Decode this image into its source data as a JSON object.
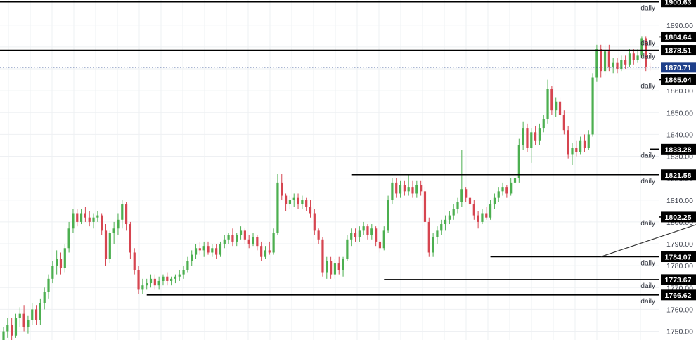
{
  "chart_data": {
    "type": "candlestick",
    "title": "",
    "xlabel": "",
    "ylabel": "",
    "ylim": [
      1746,
      1901.5
    ],
    "grid": true,
    "y_ticks": [
      1750,
      1760,
      1770,
      1780,
      1790,
      1800,
      1810,
      1820,
      1830,
      1840,
      1850,
      1860,
      1870,
      1880,
      1890
    ],
    "level_tag": "daily",
    "levels": [
      {
        "value": 1900.63,
        "label": "1900.63",
        "from": 0
      },
      {
        "value": 1884.64,
        "label": "1884.64",
        "from": 220
      },
      {
        "value": 1878.51,
        "label": "1878.51",
        "from": 0
      },
      {
        "value": 1865.04,
        "label": "1865.04",
        "from": 162
      },
      {
        "value": 1833.28,
        "label": "1833.28",
        "from": 158
      },
      {
        "value": 1821.58,
        "label": "1821.58",
        "from": 85
      },
      {
        "value": 1802.25,
        "label": "1802.25",
        "from": 166
      },
      {
        "value": 1784.07,
        "label": "1784.07",
        "from": 119
      },
      {
        "value": 1773.67,
        "label": "1773.67",
        "from": 93
      },
      {
        "value": 1766.62,
        "label": "1766.62",
        "from": 35
      }
    ],
    "current_price": {
      "value": 1870.71,
      "label": "1870.71"
    },
    "trendline": {
      "from": [
        146,
        1784.1
      ],
      "to": [
        250,
        1849.5
      ]
    },
    "candles": [
      {
        "o": 1746,
        "h": 1752,
        "l": 1745,
        "c": 1750
      },
      {
        "o": 1750,
        "h": 1756,
        "l": 1747,
        "c": 1753
      },
      {
        "o": 1753,
        "h": 1756,
        "l": 1746,
        "c": 1748
      },
      {
        "o": 1748,
        "h": 1758,
        "l": 1747,
        "c": 1756
      },
      {
        "o": 1756,
        "h": 1761,
        "l": 1752,
        "c": 1758
      },
      {
        "o": 1758,
        "h": 1762,
        "l": 1750,
        "c": 1752
      },
      {
        "o": 1752,
        "h": 1757,
        "l": 1749,
        "c": 1755
      },
      {
        "o": 1755,
        "h": 1763,
        "l": 1753,
        "c": 1760
      },
      {
        "o": 1760,
        "h": 1762,
        "l": 1753,
        "c": 1755
      },
      {
        "o": 1755,
        "h": 1765,
        "l": 1753,
        "c": 1763
      },
      {
        "o": 1763,
        "h": 1770,
        "l": 1760,
        "c": 1768
      },
      {
        "o": 1768,
        "h": 1776,
        "l": 1765,
        "c": 1774
      },
      {
        "o": 1774,
        "h": 1782,
        "l": 1772,
        "c": 1780
      },
      {
        "o": 1780,
        "h": 1787,
        "l": 1776,
        "c": 1783
      },
      {
        "o": 1783,
        "h": 1786,
        "l": 1776,
        "c": 1779
      },
      {
        "o": 1779,
        "h": 1790,
        "l": 1777,
        "c": 1788
      },
      {
        "o": 1788,
        "h": 1800,
        "l": 1786,
        "c": 1797
      },
      {
        "o": 1797,
        "h": 1806,
        "l": 1795,
        "c": 1804
      },
      {
        "o": 1804,
        "h": 1806,
        "l": 1798,
        "c": 1800
      },
      {
        "o": 1800,
        "h": 1806,
        "l": 1799,
        "c": 1804
      },
      {
        "o": 1804,
        "h": 1807,
        "l": 1800,
        "c": 1802
      },
      {
        "o": 1802,
        "h": 1805,
        "l": 1798,
        "c": 1800
      },
      {
        "o": 1800,
        "h": 1804,
        "l": 1797,
        "c": 1802
      },
      {
        "o": 1802,
        "h": 1805,
        "l": 1800,
        "c": 1803
      },
      {
        "o": 1803,
        "h": 1804,
        "l": 1794,
        "c": 1796
      },
      {
        "o": 1796,
        "h": 1799,
        "l": 1780,
        "c": 1783
      },
      {
        "o": 1783,
        "h": 1796,
        "l": 1781,
        "c": 1795
      },
      {
        "o": 1795,
        "h": 1800,
        "l": 1790,
        "c": 1797
      },
      {
        "o": 1797,
        "h": 1804,
        "l": 1794,
        "c": 1801
      },
      {
        "o": 1801,
        "h": 1810,
        "l": 1797,
        "c": 1808
      },
      {
        "o": 1808,
        "h": 1809,
        "l": 1796,
        "c": 1799
      },
      {
        "o": 1799,
        "h": 1800,
        "l": 1783,
        "c": 1786
      },
      {
        "o": 1786,
        "h": 1788,
        "l": 1776,
        "c": 1778
      },
      {
        "o": 1778,
        "h": 1780,
        "l": 1767,
        "c": 1769
      },
      {
        "o": 1769,
        "h": 1774,
        "l": 1767,
        "c": 1771
      },
      {
        "o": 1771,
        "h": 1774,
        "l": 1769,
        "c": 1772
      },
      {
        "o": 1772,
        "h": 1776,
        "l": 1770,
        "c": 1774
      },
      {
        "o": 1774,
        "h": 1776,
        "l": 1769,
        "c": 1771
      },
      {
        "o": 1771,
        "h": 1775,
        "l": 1769,
        "c": 1773
      },
      {
        "o": 1773,
        "h": 1776,
        "l": 1771,
        "c": 1775
      },
      {
        "o": 1775,
        "h": 1777,
        "l": 1771,
        "c": 1773
      },
      {
        "o": 1773,
        "h": 1775,
        "l": 1771,
        "c": 1774
      },
      {
        "o": 1774,
        "h": 1776,
        "l": 1772,
        "c": 1775
      },
      {
        "o": 1775,
        "h": 1778,
        "l": 1773,
        "c": 1776
      },
      {
        "o": 1776,
        "h": 1780,
        "l": 1774,
        "c": 1778
      },
      {
        "o": 1778,
        "h": 1784,
        "l": 1777,
        "c": 1782
      },
      {
        "o": 1782,
        "h": 1787,
        "l": 1780,
        "c": 1785
      },
      {
        "o": 1785,
        "h": 1790,
        "l": 1783,
        "c": 1788
      },
      {
        "o": 1788,
        "h": 1791,
        "l": 1785,
        "c": 1787
      },
      {
        "o": 1787,
        "h": 1791,
        "l": 1784,
        "c": 1789
      },
      {
        "o": 1789,
        "h": 1791,
        "l": 1785,
        "c": 1786
      },
      {
        "o": 1786,
        "h": 1790,
        "l": 1784,
        "c": 1788
      },
      {
        "o": 1788,
        "h": 1790,
        "l": 1783,
        "c": 1785
      },
      {
        "o": 1785,
        "h": 1791,
        "l": 1784,
        "c": 1790
      },
      {
        "o": 1790,
        "h": 1794,
        "l": 1788,
        "c": 1792
      },
      {
        "o": 1792,
        "h": 1795,
        "l": 1790,
        "c": 1794
      },
      {
        "o": 1794,
        "h": 1797,
        "l": 1789,
        "c": 1791
      },
      {
        "o": 1791,
        "h": 1795,
        "l": 1789,
        "c": 1794
      },
      {
        "o": 1794,
        "h": 1798,
        "l": 1792,
        "c": 1796
      },
      {
        "o": 1796,
        "h": 1797,
        "l": 1790,
        "c": 1792
      },
      {
        "o": 1792,
        "h": 1794,
        "l": 1788,
        "c": 1790
      },
      {
        "o": 1790,
        "h": 1795,
        "l": 1789,
        "c": 1793
      },
      {
        "o": 1793,
        "h": 1794,
        "l": 1787,
        "c": 1789
      },
      {
        "o": 1789,
        "h": 1791,
        "l": 1782,
        "c": 1784
      },
      {
        "o": 1784,
        "h": 1789,
        "l": 1783,
        "c": 1787
      },
      {
        "o": 1787,
        "h": 1791,
        "l": 1785,
        "c": 1786
      },
      {
        "o": 1786,
        "h": 1797,
        "l": 1785,
        "c": 1795
      },
      {
        "o": 1795,
        "h": 1822,
        "l": 1794,
        "c": 1818
      },
      {
        "o": 1818,
        "h": 1822,
        "l": 1810,
        "c": 1812
      },
      {
        "o": 1812,
        "h": 1813,
        "l": 1805,
        "c": 1808
      },
      {
        "o": 1808,
        "h": 1812,
        "l": 1806,
        "c": 1810
      },
      {
        "o": 1810,
        "h": 1813,
        "l": 1807,
        "c": 1811
      },
      {
        "o": 1811,
        "h": 1813,
        "l": 1806,
        "c": 1808
      },
      {
        "o": 1808,
        "h": 1812,
        "l": 1806,
        "c": 1810
      },
      {
        "o": 1810,
        "h": 1811,
        "l": 1805,
        "c": 1807
      },
      {
        "o": 1807,
        "h": 1810,
        "l": 1802,
        "c": 1804
      },
      {
        "o": 1804,
        "h": 1806,
        "l": 1794,
        "c": 1796
      },
      {
        "o": 1796,
        "h": 1797,
        "l": 1790,
        "c": 1792
      },
      {
        "o": 1792,
        "h": 1793,
        "l": 1775,
        "c": 1777
      },
      {
        "o": 1777,
        "h": 1784,
        "l": 1774,
        "c": 1782
      },
      {
        "o": 1782,
        "h": 1784,
        "l": 1774,
        "c": 1776
      },
      {
        "o": 1776,
        "h": 1783,
        "l": 1774,
        "c": 1781
      },
      {
        "o": 1781,
        "h": 1784,
        "l": 1776,
        "c": 1778
      },
      {
        "o": 1778,
        "h": 1784,
        "l": 1775,
        "c": 1783
      },
      {
        "o": 1783,
        "h": 1794,
        "l": 1782,
        "c": 1792
      },
      {
        "o": 1792,
        "h": 1797,
        "l": 1789,
        "c": 1795
      },
      {
        "o": 1795,
        "h": 1797,
        "l": 1791,
        "c": 1793
      },
      {
        "o": 1793,
        "h": 1798,
        "l": 1791,
        "c": 1796
      },
      {
        "o": 1796,
        "h": 1800,
        "l": 1794,
        "c": 1798
      },
      {
        "o": 1798,
        "h": 1799,
        "l": 1792,
        "c": 1794
      },
      {
        "o": 1794,
        "h": 1799,
        "l": 1792,
        "c": 1797
      },
      {
        "o": 1797,
        "h": 1798,
        "l": 1789,
        "c": 1791
      },
      {
        "o": 1791,
        "h": 1792,
        "l": 1786,
        "c": 1788
      },
      {
        "o": 1788,
        "h": 1798,
        "l": 1787,
        "c": 1796
      },
      {
        "o": 1796,
        "h": 1812,
        "l": 1795,
        "c": 1810
      },
      {
        "o": 1810,
        "h": 1820,
        "l": 1808,
        "c": 1818
      },
      {
        "o": 1818,
        "h": 1820,
        "l": 1811,
        "c": 1813
      },
      {
        "o": 1813,
        "h": 1819,
        "l": 1811,
        "c": 1817
      },
      {
        "o": 1817,
        "h": 1819,
        "l": 1812,
        "c": 1814
      },
      {
        "o": 1814,
        "h": 1822,
        "l": 1812,
        "c": 1816
      },
      {
        "o": 1816,
        "h": 1819,
        "l": 1811,
        "c": 1813
      },
      {
        "o": 1813,
        "h": 1819,
        "l": 1811,
        "c": 1817
      },
      {
        "o": 1817,
        "h": 1819,
        "l": 1812,
        "c": 1814
      },
      {
        "o": 1814,
        "h": 1816,
        "l": 1798,
        "c": 1800
      },
      {
        "o": 1800,
        "h": 1802,
        "l": 1784,
        "c": 1786
      },
      {
        "o": 1786,
        "h": 1795,
        "l": 1784,
        "c": 1793
      },
      {
        "o": 1793,
        "h": 1798,
        "l": 1790,
        "c": 1796
      },
      {
        "o": 1796,
        "h": 1801,
        "l": 1794,
        "c": 1799
      },
      {
        "o": 1799,
        "h": 1803,
        "l": 1796,
        "c": 1801
      },
      {
        "o": 1801,
        "h": 1805,
        "l": 1799,
        "c": 1803
      },
      {
        "o": 1803,
        "h": 1808,
        "l": 1801,
        "c": 1806
      },
      {
        "o": 1806,
        "h": 1811,
        "l": 1804,
        "c": 1809
      },
      {
        "o": 1809,
        "h": 1833,
        "l": 1807,
        "c": 1815
      },
      {
        "o": 1815,
        "h": 1816,
        "l": 1809,
        "c": 1811
      },
      {
        "o": 1811,
        "h": 1813,
        "l": 1806,
        "c": 1808
      },
      {
        "o": 1808,
        "h": 1810,
        "l": 1801,
        "c": 1803
      },
      {
        "o": 1803,
        "h": 1805,
        "l": 1797,
        "c": 1800
      },
      {
        "o": 1800,
        "h": 1806,
        "l": 1799,
        "c": 1804
      },
      {
        "o": 1804,
        "h": 1807,
        "l": 1801,
        "c": 1802
      },
      {
        "o": 1802,
        "h": 1810,
        "l": 1801,
        "c": 1808
      },
      {
        "o": 1808,
        "h": 1813,
        "l": 1806,
        "c": 1811
      },
      {
        "o": 1811,
        "h": 1816,
        "l": 1809,
        "c": 1814
      },
      {
        "o": 1814,
        "h": 1818,
        "l": 1812,
        "c": 1816
      },
      {
        "o": 1816,
        "h": 1817,
        "l": 1811,
        "c": 1813
      },
      {
        "o": 1813,
        "h": 1820,
        "l": 1812,
        "c": 1818
      },
      {
        "o": 1818,
        "h": 1822,
        "l": 1815,
        "c": 1820
      },
      {
        "o": 1820,
        "h": 1838,
        "l": 1818,
        "c": 1835
      },
      {
        "o": 1835,
        "h": 1846,
        "l": 1833,
        "c": 1843
      },
      {
        "o": 1843,
        "h": 1845,
        "l": 1832,
        "c": 1834
      },
      {
        "o": 1834,
        "h": 1843,
        "l": 1827,
        "c": 1841
      },
      {
        "o": 1841,
        "h": 1844,
        "l": 1835,
        "c": 1837
      },
      {
        "o": 1837,
        "h": 1845,
        "l": 1835,
        "c": 1843
      },
      {
        "o": 1843,
        "h": 1849,
        "l": 1841,
        "c": 1847
      },
      {
        "o": 1847,
        "h": 1865,
        "l": 1845,
        "c": 1861
      },
      {
        "o": 1861,
        "h": 1862,
        "l": 1849,
        "c": 1851
      },
      {
        "o": 1851,
        "h": 1857,
        "l": 1848,
        "c": 1855
      },
      {
        "o": 1855,
        "h": 1857,
        "l": 1847,
        "c": 1849
      },
      {
        "o": 1849,
        "h": 1851,
        "l": 1840,
        "c": 1842
      },
      {
        "o": 1842,
        "h": 1844,
        "l": 1829,
        "c": 1831
      },
      {
        "o": 1831,
        "h": 1836,
        "l": 1826,
        "c": 1834
      },
      {
        "o": 1834,
        "h": 1837,
        "l": 1830,
        "c": 1832
      },
      {
        "o": 1832,
        "h": 1839,
        "l": 1831,
        "c": 1837
      },
      {
        "o": 1837,
        "h": 1840,
        "l": 1832,
        "c": 1834
      },
      {
        "o": 1834,
        "h": 1842,
        "l": 1833,
        "c": 1840
      },
      {
        "o": 1840,
        "h": 1868,
        "l": 1839,
        "c": 1866
      },
      {
        "o": 1866,
        "h": 1881,
        "l": 1864,
        "c": 1879
      },
      {
        "o": 1879,
        "h": 1881,
        "l": 1866,
        "c": 1869
      },
      {
        "o": 1869,
        "h": 1881,
        "l": 1867,
        "c": 1878
      },
      {
        "o": 1878,
        "h": 1881,
        "l": 1869,
        "c": 1871
      },
      {
        "o": 1871,
        "h": 1875,
        "l": 1868,
        "c": 1873
      },
      {
        "o": 1873,
        "h": 1875,
        "l": 1868,
        "c": 1870
      },
      {
        "o": 1870,
        "h": 1876,
        "l": 1869,
        "c": 1874
      },
      {
        "o": 1874,
        "h": 1876,
        "l": 1870,
        "c": 1872
      },
      {
        "o": 1872,
        "h": 1879,
        "l": 1871,
        "c": 1877
      },
      {
        "o": 1877,
        "h": 1879,
        "l": 1872,
        "c": 1874
      },
      {
        "o": 1874,
        "h": 1879,
        "l": 1873,
        "c": 1876
      },
      {
        "o": 1876,
        "h": 1885,
        "l": 1875,
        "c": 1884
      },
      {
        "o": 1884,
        "h": 1885,
        "l": 1869,
        "c": 1871
      },
      {
        "o": 1871,
        "h": 1873,
        "l": 1869,
        "c": 1870.71
      }
    ]
  },
  "colors": {
    "up": "#4caf50",
    "down": "#d64550",
    "level_line": "#000000",
    "label_bg": "#000000",
    "label_text": "#ffffff",
    "current_bg": "#1e3f8a",
    "current_line": "#1e3f8a",
    "grid": "#eef0f3",
    "axis_text": "#3a3e4a",
    "tag_text": "#2a2e39",
    "trendline": "#333333"
  }
}
